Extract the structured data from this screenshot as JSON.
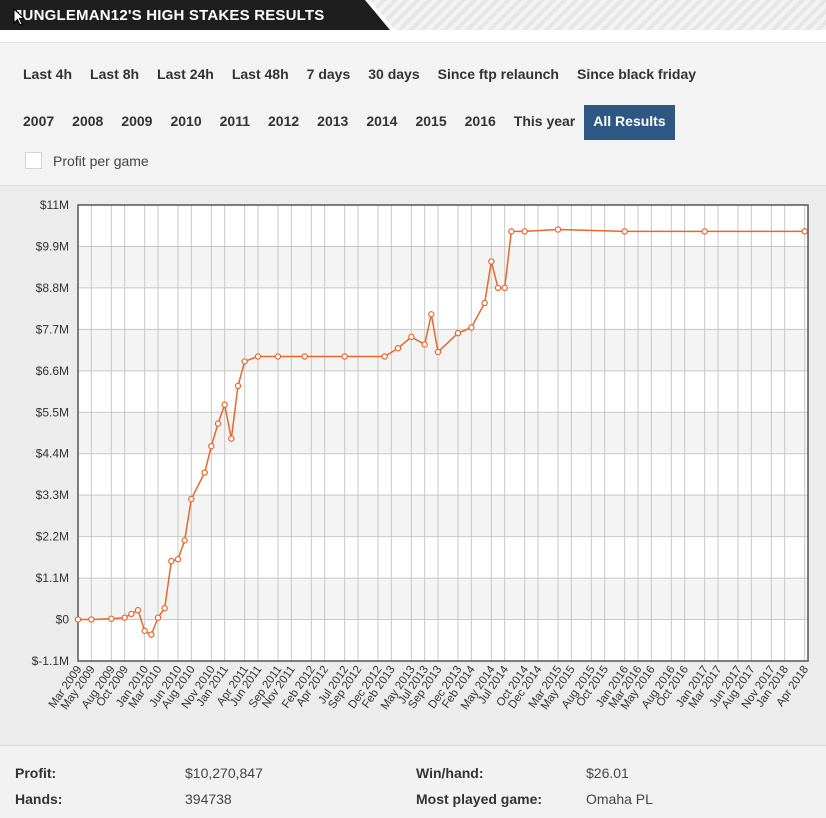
{
  "header": {
    "title": "JUNGLEMAN12'S HIGH STAKES RESULTS"
  },
  "filters": {
    "row1": [
      "Last 4h",
      "Last 8h",
      "Last 24h",
      "Last 48h",
      "7 days",
      "30 days",
      "Since ftp relaunch",
      "Since black friday"
    ],
    "row2": [
      "2007",
      "2008",
      "2009",
      "2010",
      "2011",
      "2012",
      "2013",
      "2014",
      "2015",
      "2016",
      "This year",
      "All Results"
    ],
    "active": "All Results",
    "checkbox_label": "Profit per game",
    "checkbox_checked": false
  },
  "colors": {
    "line": "#e8672b",
    "active_button": "#2e5784",
    "header_dark": "#1e1e1e"
  },
  "chart_data": {
    "type": "line",
    "y_tick_labels": [
      "$11M",
      "$9.9M",
      "$8.8M",
      "$7.7M",
      "$6.6M",
      "$5.5M",
      "$4.4M",
      "$3.3M",
      "$2.2M",
      "$1.1M",
      "$0",
      "$-1.1M"
    ],
    "ylim": [
      -1.1,
      11
    ],
    "y_unit": "$M",
    "x_tick_labels": [
      "Mar 2009",
      "May 2009",
      "Aug 2009",
      "Oct 2009",
      "Jan 2010",
      "Mar 2010",
      "Jun 2010",
      "Aug 2010",
      "Nov 2010",
      "Jan 2011",
      "Apr 2011",
      "Jun 2011",
      "Sep 2011",
      "Nov 2011",
      "Feb 2012",
      "Apr 2012",
      "Jul 2012",
      "Sep 2012",
      "Dec 2012",
      "Feb 2013",
      "May 2013",
      "Jul 2013",
      "Sep 2013",
      "Dec 2013",
      "Feb 2014",
      "May 2014",
      "Jul 2014",
      "Oct 2014",
      "Dec 2014",
      "Mar 2015",
      "May 2015",
      "Aug 2015",
      "Oct 2015",
      "Jan 2016",
      "Mar 2016",
      "May 2016",
      "Aug 2016",
      "Oct 2016",
      "Jan 2017",
      "Mar 2017",
      "Jun 2017",
      "Aug 2017",
      "Nov 2017",
      "Jan 2018",
      "Apr 2018"
    ],
    "grid": true,
    "series": [
      {
        "color": "#e8672b",
        "points": [
          [
            "Mar 2009",
            0.0
          ],
          [
            "May 2009",
            0.0
          ],
          [
            "Aug 2009",
            0.02
          ],
          [
            "Oct 2009",
            0.05
          ],
          [
            "Nov 2009",
            0.15
          ],
          [
            "Dec 2009",
            0.25
          ],
          [
            "Jan 2010",
            -0.3
          ],
          [
            "Feb 2010",
            -0.4
          ],
          [
            "Mar 2010",
            0.05
          ],
          [
            "Apr 2010",
            0.3
          ],
          [
            "May 2010",
            1.55
          ],
          [
            "Jun 2010",
            1.6
          ],
          [
            "Jul 2010",
            2.1
          ],
          [
            "Aug 2010",
            3.2
          ],
          [
            "Oct 2010",
            3.9
          ],
          [
            "Nov 2010",
            4.6
          ],
          [
            "Dec 2010",
            5.2
          ],
          [
            "Jan 2011",
            5.7
          ],
          [
            "Feb 2011",
            4.8
          ],
          [
            "Mar 2011",
            6.2
          ],
          [
            "Apr 2011",
            6.85
          ],
          [
            "Jun 2011",
            6.98
          ],
          [
            "Sep 2011",
            6.98
          ],
          [
            "Jan 2012",
            6.98
          ],
          [
            "Jul 2012",
            6.98
          ],
          [
            "Jan 2013",
            6.98
          ],
          [
            "Mar 2013",
            7.2
          ],
          [
            "May 2013",
            7.5
          ],
          [
            "Jul 2013",
            7.3
          ],
          [
            "Aug 2013",
            8.1
          ],
          [
            "Sep 2013",
            7.1
          ],
          [
            "Dec 2013",
            7.6
          ],
          [
            "Feb 2014",
            7.75
          ],
          [
            "Apr 2014",
            8.4
          ],
          [
            "May 2014",
            9.5
          ],
          [
            "Jun 2014",
            8.8
          ],
          [
            "Jul 2014",
            8.8
          ],
          [
            "Aug 2014",
            10.3
          ],
          [
            "Oct 2014",
            10.3
          ],
          [
            "Mar 2015",
            10.35
          ],
          [
            "Jan 2016",
            10.3
          ],
          [
            "Jan 2017",
            10.3
          ],
          [
            "Apr 2018",
            10.3
          ]
        ]
      }
    ]
  },
  "stats": {
    "profit_label": "Profit:",
    "profit_value": "$10,270,847",
    "hands_label": "Hands:",
    "hands_value": "394738",
    "winhand_label": "Win/hand:",
    "winhand_value": "$26.01",
    "game_label": "Most played game:",
    "game_value": "Omaha PL"
  }
}
